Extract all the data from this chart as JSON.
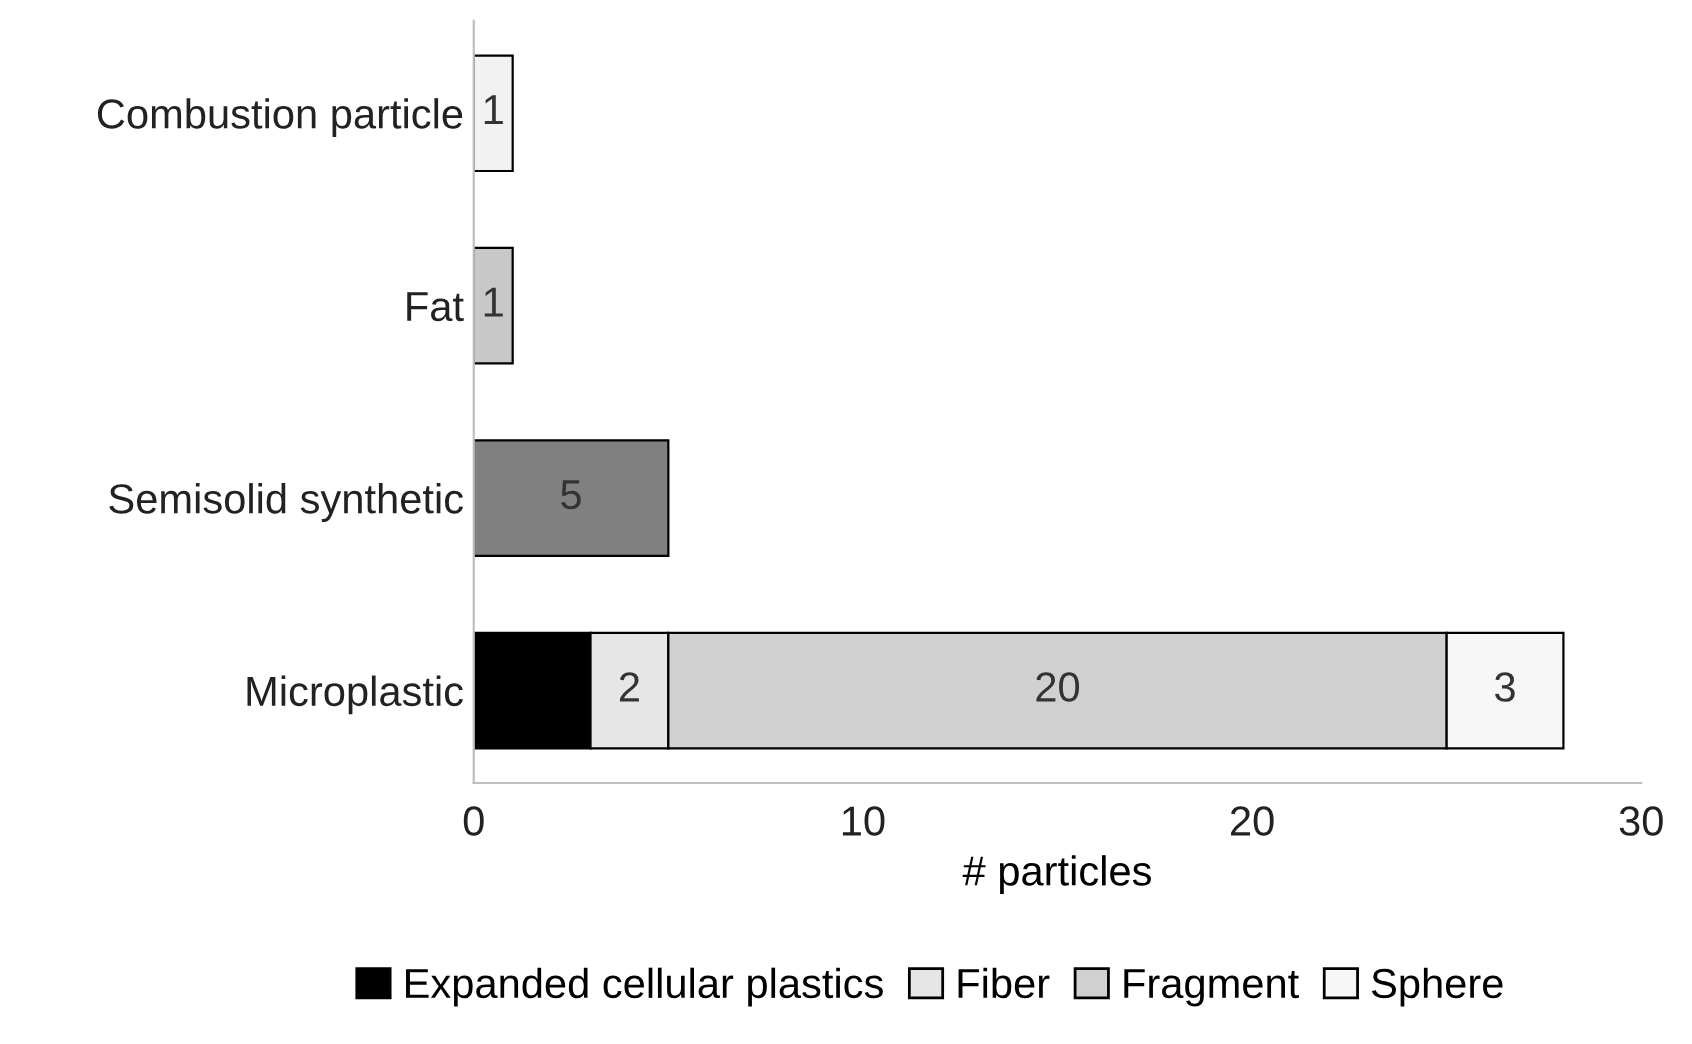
{
  "chart_data": {
    "type": "bar",
    "orientation": "horizontal",
    "stacked": true,
    "categories": [
      "Combustion particle",
      "Fat",
      "Semisolid synthetic",
      "Microplastic"
    ],
    "series": [
      {
        "color": "#f2f2f2",
        "values": [
          1,
          null,
          null,
          null
        ],
        "value_labels": [
          "1",
          null,
          null,
          null
        ]
      },
      {
        "color": "#c8c8c8",
        "values": [
          null,
          1,
          null,
          null
        ],
        "value_labels": [
          null,
          "1",
          null,
          null
        ]
      },
      {
        "color": "#808080",
        "values": [
          null,
          null,
          5,
          null
        ],
        "value_labels": [
          null,
          null,
          "5",
          null
        ]
      },
      {
        "name": "Expanded cellular plastics",
        "color": "#000000",
        "values": [
          null,
          null,
          null,
          3
        ],
        "value_labels": [
          null,
          null,
          null,
          null
        ]
      },
      {
        "name": "Fiber",
        "color": "#e6e6e6",
        "values": [
          null,
          null,
          null,
          2
        ],
        "value_labels": [
          null,
          null,
          null,
          "2"
        ]
      },
      {
        "name": "Fragment",
        "color": "#d0d0d0",
        "values": [
          null,
          null,
          null,
          20
        ],
        "value_labels": [
          null,
          null,
          null,
          "20"
        ]
      },
      {
        "name": "Sphere",
        "color": "#f7f7f7",
        "values": [
          null,
          null,
          null,
          3
        ],
        "value_labels": [
          null,
          null,
          null,
          "3"
        ]
      }
    ],
    "xlabel": "# particles",
    "xlim": [
      0,
      30
    ],
    "xticks": [
      0,
      10,
      20,
      30
    ],
    "grid": false,
    "legend": "bottom"
  }
}
